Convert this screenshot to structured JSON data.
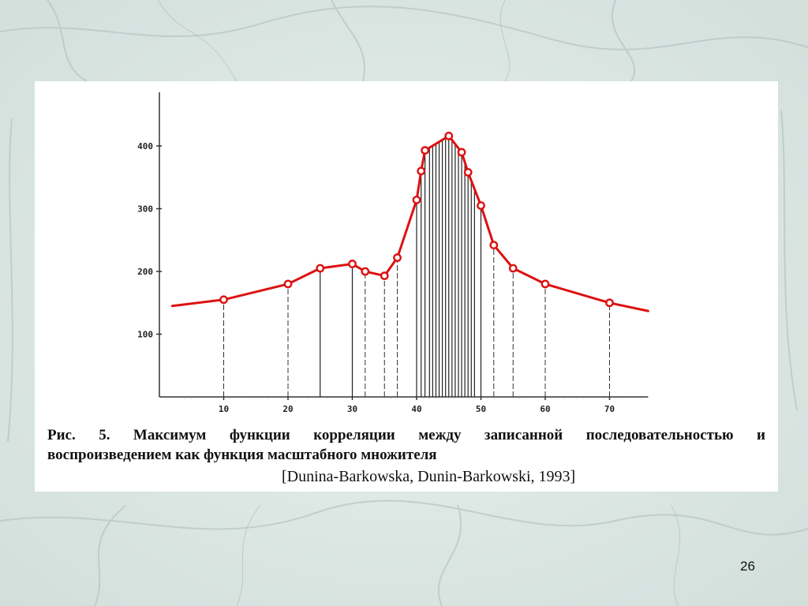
{
  "slide": {
    "number": "26"
  },
  "figure": {
    "caption_line1": "Рис. 5. Максимум функции корреляции между записанной последовательностью и",
    "caption_line2": "воспроизведением как функция масштабного множителя",
    "citation": "[Dunina-Barkowska, Dunin-Barkowski, 1993]"
  },
  "colors": {
    "curve": "#dd1111",
    "axes": "#333333",
    "background": "#dfe9e6"
  },
  "chart_data": {
    "type": "line",
    "title": "",
    "xlabel": "",
    "ylabel": "",
    "xlim": [
      0,
      76
    ],
    "ylim": [
      0,
      480
    ],
    "xticks": [
      10,
      20,
      30,
      40,
      50,
      60,
      70
    ],
    "yticks": [
      100,
      200,
      300,
      400
    ],
    "grid": false,
    "curve_start": [
      2,
      145
    ],
    "curve_end": [
      76,
      137
    ],
    "series": [
      {
        "x": [
          10,
          20,
          25,
          30,
          32,
          35,
          37,
          40,
          40.7,
          41.3,
          45,
          47,
          48,
          50,
          52,
          55,
          60,
          70
        ],
        "y": [
          155,
          180,
          205,
          212,
          200,
          193,
          222,
          314,
          360,
          393,
          416,
          390,
          358,
          305,
          242,
          205,
          180,
          150
        ]
      }
    ],
    "verticals": {
      "solid": [
        25,
        30,
        40,
        40.7,
        41.3,
        42,
        42.5,
        43,
        43.5,
        44,
        44.5,
        45,
        45.5,
        46,
        46.5,
        47,
        47.5,
        48,
        48.5,
        49,
        50
      ],
      "dashed": [
        10,
        20,
        32,
        35,
        37,
        52,
        55,
        60,
        70
      ]
    }
  }
}
